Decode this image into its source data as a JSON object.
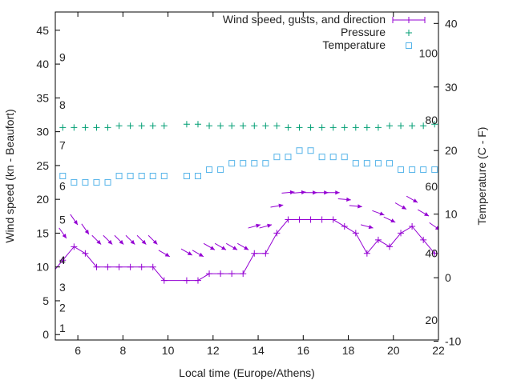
{
  "chart_data": {
    "type": "line",
    "legend": {
      "placement": "top-right",
      "entries": [
        "Wind speed, gusts, and direction",
        "Pressure",
        "Temperature"
      ]
    },
    "xlabel": "Local time (Europe/Athens)",
    "ylabel": "Wind speed (kn - Beaufort)",
    "y2label": "Temperature (C - F)",
    "xlim": [
      5,
      22
    ],
    "ylim": [
      -0.8,
      47.7
    ],
    "y2lim": [
      -9.8,
      41.8
    ],
    "x_ticks": [
      6,
      8,
      10,
      12,
      14,
      16,
      18,
      20,
      22
    ],
    "y_ticks": [
      0,
      5,
      10,
      15,
      20,
      25,
      30,
      35,
      40,
      45
    ],
    "y2_ticks": [
      -10,
      0,
      10,
      20,
      30,
      40
    ],
    "beaufort_labels": [
      {
        "label": "1",
        "kn": 1
      },
      {
        "label": "2",
        "kn": 4
      },
      {
        "label": "3",
        "kn": 7
      },
      {
        "label": "4",
        "kn": 11
      },
      {
        "label": "5",
        "kn": 17
      },
      {
        "label": "6",
        "kn": 22
      },
      {
        "label": "7",
        "kn": 28
      },
      {
        "label": "8",
        "kn": 34
      },
      {
        "label": "9",
        "kn": 41
      }
    ],
    "fahrenheit_labels": [
      "20",
      "40",
      "60",
      "80",
      "100"
    ],
    "colors": {
      "wind": "#9400d3",
      "pressure": "#009e73",
      "temperature": "#56b4e9",
      "axis": "#000000"
    },
    "series": [
      {
        "name": "Wind speed, gusts, and direction",
        "x": [
          5.33,
          5.83,
          6.33,
          6.83,
          7.33,
          7.83,
          8.33,
          8.83,
          9.33,
          9.83,
          10.83,
          11.33,
          11.83,
          12.33,
          12.83,
          13.33,
          13.83,
          14.33,
          14.83,
          15.33,
          15.83,
          16.33,
          16.83,
          17.33,
          17.83,
          18.33,
          18.83,
          19.33,
          19.83,
          20.33,
          20.83,
          21.33,
          21.83
        ],
        "values": [
          11,
          13,
          12,
          10,
          10,
          10,
          10,
          10,
          10,
          8,
          8,
          8,
          9,
          9,
          9,
          9,
          12,
          12,
          15,
          17,
          17,
          17,
          17,
          17,
          16,
          15,
          12,
          14,
          13,
          15,
          16,
          14,
          12
        ],
        "arrow_level_kn": [
          15,
          17,
          15.6,
          14,
          14,
          14,
          14,
          14,
          14,
          12,
          12.2,
          12,
          13,
          13,
          13,
          13,
          16,
          16,
          19,
          21,
          21,
          21,
          21,
          21,
          20,
          19,
          16,
          18,
          17,
          19,
          20,
          18,
          16
        ],
        "direction_from_deg": [
          325,
          325,
          325,
          315,
          315,
          315,
          315,
          315,
          315,
          300,
          300,
          300,
          300,
          300,
          300,
          300,
          255,
          255,
          260,
          265,
          265,
          270,
          270,
          270,
          275,
          275,
          285,
          290,
          295,
          300,
          300,
          300,
          305
        ]
      },
      {
        "name": "Pressure",
        "x": [
          5.33,
          5.83,
          6.33,
          6.83,
          7.33,
          7.83,
          8.33,
          8.83,
          9.33,
          9.83,
          10.83,
          11.33,
          11.83,
          12.33,
          12.83,
          13.33,
          13.83,
          14.33,
          14.83,
          15.33,
          15.83,
          16.33,
          16.83,
          17.33,
          17.83,
          18.33,
          18.83,
          19.33,
          19.83,
          20.33,
          20.83,
          21.33,
          21.83
        ],
        "values": [
          77.7,
          77.7,
          77.7,
          77.7,
          77.7,
          78.2,
          78.2,
          78.2,
          78.2,
          78.2,
          78.7,
          78.7,
          78.2,
          78.2,
          78.2,
          78.2,
          78.2,
          78.2,
          78.2,
          77.7,
          77.7,
          77.7,
          77.7,
          77.7,
          77.7,
          77.7,
          77.7,
          77.7,
          78.2,
          78.2,
          78.2,
          78.2,
          78.7
        ]
      },
      {
        "name": "Temperature",
        "x": [
          5.33,
          5.83,
          6.33,
          6.83,
          7.33,
          7.83,
          8.33,
          8.83,
          9.33,
          9.83,
          10.83,
          11.33,
          11.83,
          12.33,
          12.83,
          13.33,
          13.83,
          14.33,
          14.83,
          15.33,
          15.83,
          16.33,
          16.83,
          17.33,
          17.83,
          18.33,
          18.83,
          19.33,
          19.83,
          20.33,
          20.83,
          21.33,
          21.83
        ],
        "values": [
          16,
          15,
          15,
          15,
          15,
          16,
          16,
          16,
          16,
          16,
          16,
          16,
          17,
          17,
          18,
          18,
          18,
          18,
          19,
          19,
          20,
          20,
          19,
          19,
          19,
          18,
          18,
          18,
          18,
          17,
          17,
          17,
          17
        ]
      }
    ]
  }
}
